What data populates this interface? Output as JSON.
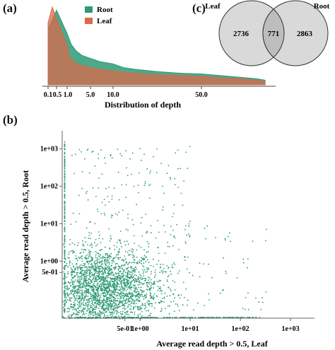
{
  "panels": {
    "a": "(a)",
    "b": "(b)",
    "c": "(c)"
  },
  "chart_data": [
    {
      "type": "area",
      "panel": "(a)",
      "xlabel": "Distribution of depth",
      "ylabel": "",
      "x_ticks": [
        "0.1",
        "0.5",
        "1.0",
        "5.0",
        "10.0",
        "50.0"
      ],
      "x_tick_values": [
        0.1,
        0.5,
        1.0,
        5.0,
        10.0,
        50.0
      ],
      "xlim": [
        0,
        90
      ],
      "ylim": [
        0,
        1
      ],
      "legend_position": "top-center",
      "series": [
        {
          "name": "Root",
          "color": "#2e9a74",
          "x": [
            0.1,
            0.5,
            1.0,
            1.7,
            2.5,
            3.5,
            5.0,
            7.0,
            10.0,
            15.0,
            20.0,
            30.0,
            40.0,
            50.0,
            60.0,
            70.0,
            80.0,
            85.0
          ],
          "y": [
            0.72,
            0.96,
            0.66,
            0.52,
            0.44,
            0.38,
            0.34,
            0.3,
            0.27,
            0.22,
            0.2,
            0.17,
            0.15,
            0.14,
            0.12,
            0.1,
            0.08,
            0.06
          ]
        },
        {
          "name": "Leaf",
          "color": "#d9694a",
          "x": [
            0.1,
            0.3,
            0.6,
            1.0,
            1.5,
            2.5,
            3.5,
            5.0,
            7.0,
            10.0,
            15.0,
            20.0,
            30.0,
            40.0,
            50.0,
            60.0,
            70.0,
            80.0,
            85.0
          ],
          "y": [
            0.8,
            1.0,
            0.78,
            0.5,
            0.34,
            0.28,
            0.25,
            0.22,
            0.2,
            0.18,
            0.16,
            0.15,
            0.13,
            0.12,
            0.11,
            0.09,
            0.08,
            0.06,
            0.04
          ]
        }
      ]
    },
    {
      "type": "scatter",
      "panel": "(b)",
      "xlabel": "Average read depth > 0.5, Leaf",
      "ylabel": "Average read depth > 0.5, Root",
      "x_scale": "log",
      "y_scale": "log",
      "x_ticks": [
        "5e-01",
        "1e+00",
        "1e+01",
        "1e+02",
        "1e+03"
      ],
      "x_tick_values": [
        0.5,
        1,
        10,
        100,
        1000
      ],
      "y_ticks": [
        "1e+03",
        "1e+02",
        "1e+01",
        "1e+00",
        "5e-01"
      ],
      "y_tick_values": [
        1000,
        100,
        10,
        1,
        0.5
      ],
      "xlim": [
        0.03,
        3000
      ],
      "ylim": [
        0.03,
        3000
      ],
      "color": "#2e9a74",
      "note_points": "several thousand points, densest at x 0.05–1, y 0.05–1"
    },
    {
      "type": "venn",
      "panel": "(c)",
      "sets": [
        {
          "name": "Leaf",
          "only": "2736"
        },
        {
          "name": "Root",
          "only": "2863"
        }
      ],
      "overlap": "771",
      "fill": "#d9d9d9",
      "overlap_fill": "#bdbdbd"
    }
  ]
}
